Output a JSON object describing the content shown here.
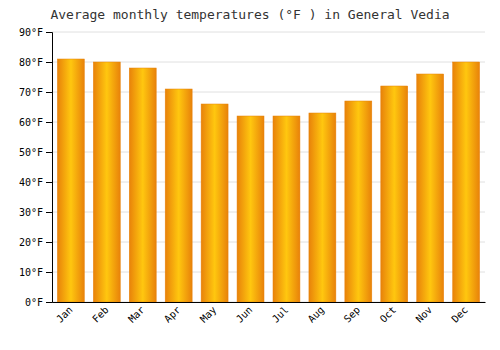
{
  "chart_data": {
    "type": "bar",
    "title": "Average monthly temperatures (°F ) in General Vedia",
    "categories": [
      "Jan",
      "Feb",
      "Mar",
      "Apr",
      "May",
      "Jun",
      "Jul",
      "Aug",
      "Sep",
      "Oct",
      "Nov",
      "Dec"
    ],
    "values": [
      81,
      80,
      78,
      71,
      66,
      62,
      62,
      63,
      67,
      72,
      76,
      80
    ],
    "color": "#E8820A",
    "ylim": [
      0,
      90
    ],
    "yticks": [
      {
        "value": 0,
        "label": "0°F"
      },
      {
        "value": 10,
        "label": "10°F"
      },
      {
        "value": 20,
        "label": "20°F"
      },
      {
        "value": 30,
        "label": "30°F"
      },
      {
        "value": 40,
        "label": "40°F"
      },
      {
        "value": 50,
        "label": "50°F"
      },
      {
        "value": 60,
        "label": "60°F"
      },
      {
        "value": 70,
        "label": "70°F"
      },
      {
        "value": 80,
        "label": "80°F"
      },
      {
        "value": 90,
        "label": "90°F"
      }
    ],
    "grid": true
  }
}
